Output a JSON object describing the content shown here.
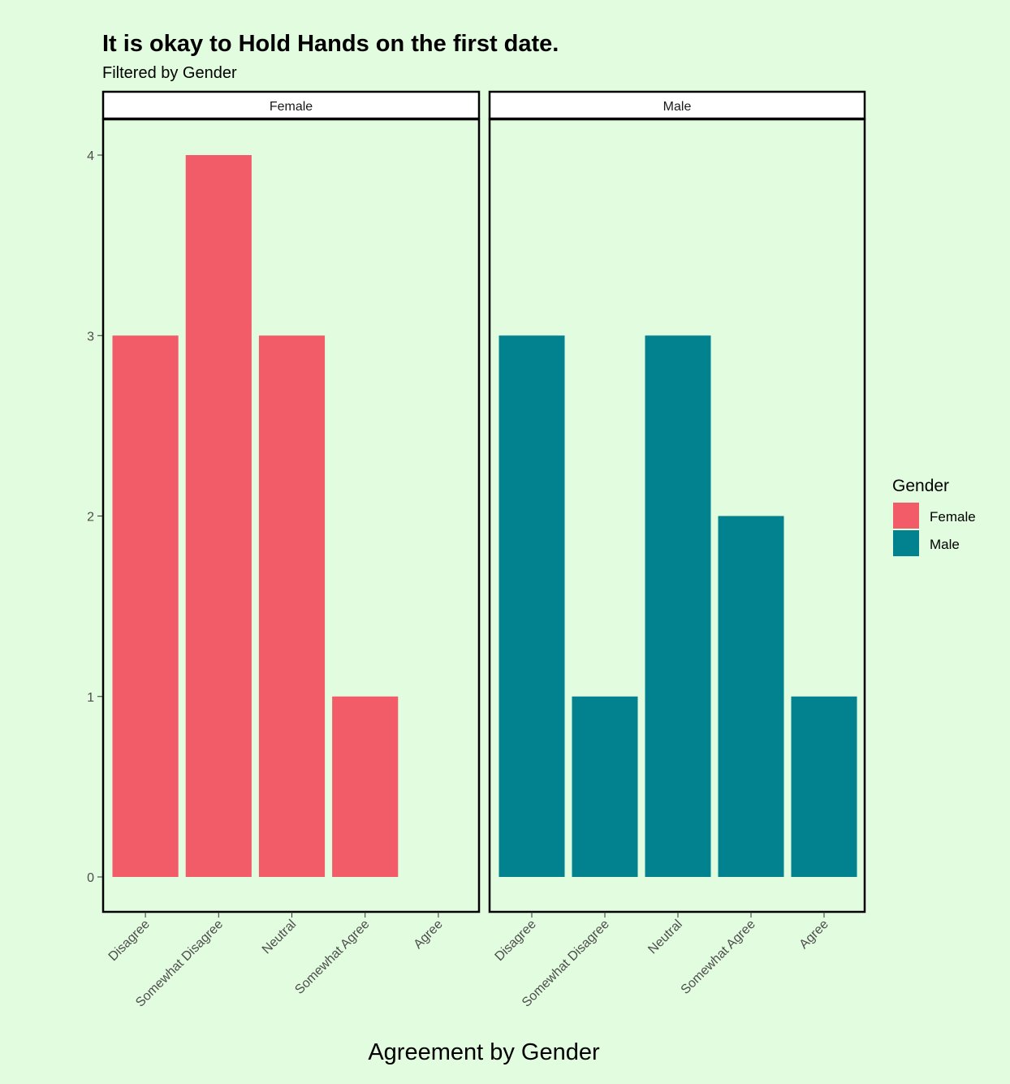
{
  "chart_data": {
    "type": "bar",
    "title": "It is okay to Hold Hands on the first date.",
    "subtitle": "Filtered by Gender",
    "xlabel": "Agreement by Gender",
    "ylabel": "",
    "ylim": [
      0,
      4.2
    ],
    "yticks": [
      "0",
      "1",
      "2",
      "3",
      "4"
    ],
    "categories": [
      "Disagree",
      "Somewhat Disagree",
      "Neutral",
      "Somewhat Agree",
      "Agree"
    ],
    "facets": [
      {
        "label": "Female",
        "color": "#F25C69",
        "values": [
          3,
          4,
          3,
          1,
          0
        ]
      },
      {
        "label": "Male",
        "color": "#02818F",
        "values": [
          3,
          1,
          3,
          2,
          1
        ]
      }
    ],
    "legend": {
      "title": "Gender",
      "position": "right",
      "items": [
        {
          "label": "Female",
          "color": "#F25C69"
        },
        {
          "label": "Male",
          "color": "#02818F"
        }
      ]
    },
    "grid": false,
    "background": "#E2FCDF"
  }
}
